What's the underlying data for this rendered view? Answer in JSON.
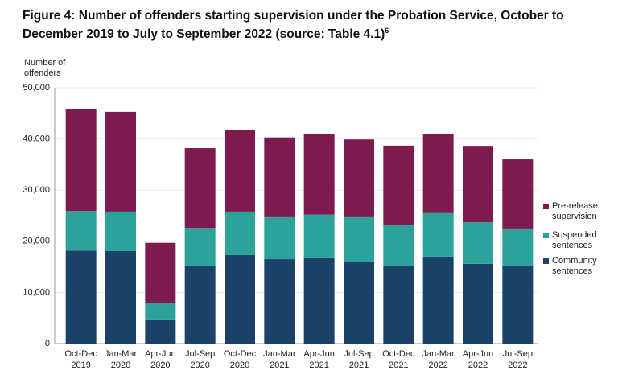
{
  "chart_data": {
    "type": "stacked_bar",
    "title": "Figure 4: Number of offenders starting supervision under the Probation Service, October to December 2019 to July to September 2022 (source: Table 4.1)",
    "title_note": "6",
    "y_label": "Number of offenders",
    "categories": [
      "Oct-Dec 2019",
      "Jan-Mar 2020",
      "Apr-Jun 2020",
      "Jul-Sep 2020",
      "Oct-Dec 2020",
      "Jan-Mar 2021",
      "Apr-Jun 2021",
      "Jul-Sep 2021",
      "Oct-Dec 2021",
      "Jan-Mar 2022",
      "Apr-Jun 2022",
      "Jul-Sep 2022"
    ],
    "series": [
      {
        "name": "Community sentences",
        "color": "#1b4268",
        "values": [
          18200,
          18100,
          4600,
          15300,
          17300,
          16500,
          16700,
          16000,
          15300,
          17000,
          15600,
          15300
        ]
      },
      {
        "name": "Suspended sentences",
        "color": "#2ba39b",
        "values": [
          7700,
          7700,
          3300,
          7300,
          8500,
          8200,
          8500,
          8700,
          7800,
          8500,
          8100,
          7200
        ]
      },
      {
        "name": "Pre-release supervision",
        "color": "#7d1a4e",
        "values": [
          20000,
          19500,
          11800,
          15600,
          16000,
          15600,
          15700,
          15200,
          15600,
          15500,
          14800,
          13500
        ]
      }
    ],
    "ylim": [
      0,
      50000
    ],
    "yticks": [
      0,
      {
        "value": 10000,
        "label": "10,000"
      },
      {
        "value": 20000,
        "label": "20,000"
      },
      {
        "value": 30000,
        "label": "30,000"
      },
      {
        "value": 40000,
        "label": "40,000"
      },
      {
        "value": 50000,
        "label": "50,000"
      }
    ],
    "grid": true,
    "legend": "right"
  }
}
